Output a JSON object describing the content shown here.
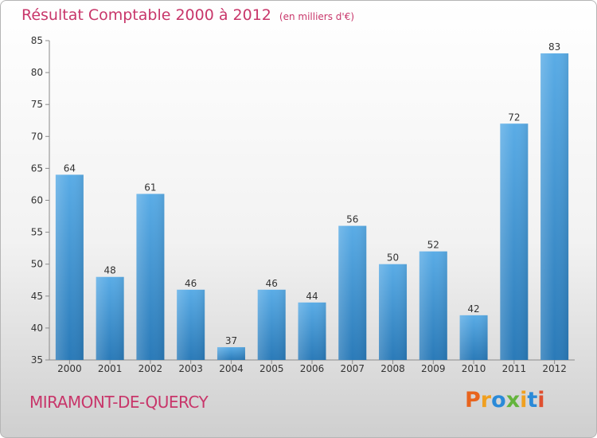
{
  "header": {
    "title": "Résultat Comptable 2000 à 2012",
    "unit": "(en milliers d'€)"
  },
  "footer": {
    "commune": "MIRAMONT-DE-QUERCY",
    "logo_text": "Proxiti",
    "logo_colors": [
      "#e8641e",
      "#f0a020",
      "#2a8ad8",
      "#64b43c",
      "#f0a020",
      "#2a8ad8",
      "#e05030"
    ]
  },
  "chart_data": {
    "type": "bar",
    "title": "Résultat Comptable 2000 à 2012",
    "xlabel": "",
    "ylabel": "",
    "categories": [
      "2000",
      "2001",
      "2002",
      "2003",
      "2004",
      "2005",
      "2006",
      "2007",
      "2008",
      "2009",
      "2010",
      "2011",
      "2012"
    ],
    "values": [
      64,
      48,
      61,
      46,
      37,
      46,
      44,
      56,
      50,
      52,
      42,
      72,
      83
    ],
    "ylim": [
      35,
      85
    ],
    "yticks": [
      35,
      40,
      45,
      50,
      55,
      60,
      65,
      70,
      75,
      80,
      85
    ],
    "grid": false,
    "data_labels": true,
    "bar_color_top": "#5aace6",
    "bar_color_bottom": "#2a7ab8"
  }
}
